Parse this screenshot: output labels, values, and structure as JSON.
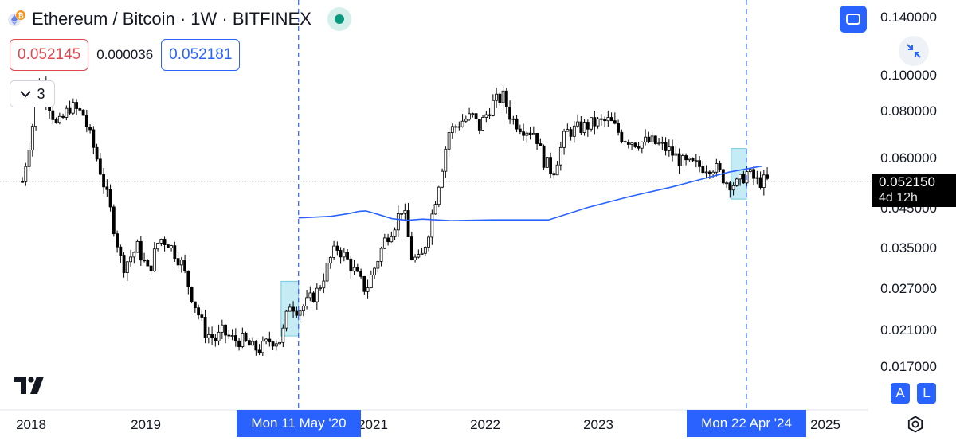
{
  "header": {
    "title": "Ethereum / Bitcoin · 1W · BITFINEX",
    "symbol_icon": "ethereum-icon",
    "status": "market-open",
    "status_color": "#089981"
  },
  "ohlc": {
    "sell_price": "0.052145",
    "spread": "0.000036",
    "buy_price": "0.052181"
  },
  "indicators": {
    "collapsed_count": "3"
  },
  "buttons": {
    "fullscreen_icon": "fullscreen-icon",
    "compress_icon": "compress-arrows-icon",
    "auto_scale": "A",
    "log_scale": "L",
    "settings_icon": "gear-icon"
  },
  "price_axis": {
    "labels": [
      "0.140000",
      "0.100000",
      "0.080000",
      "0.060000",
      "0.045000",
      "0.035000",
      "0.027000",
      "0.021000",
      "0.017000"
    ],
    "last_price": "0.052150",
    "countdown": "4d 12h"
  },
  "time_axis": {
    "labels": [
      "2018",
      "2019",
      "2021",
      "2022",
      "2023",
      "2025"
    ],
    "flags": [
      "Mon 11 May '20",
      "Mon 22 Apr '24"
    ]
  },
  "colors": {
    "candles": "#000000",
    "moving_average": "#2962ff",
    "highlight_fill": "#bfeaf4",
    "highlight_border": "#67c5dd",
    "accent": "#2962ff",
    "red": "#e0474f"
  },
  "chart_data": {
    "type": "candlestick",
    "title": "Ethereum / Bitcoin · 1W · BITFINEX",
    "scale": "log",
    "ylim": [
      0.0155,
      0.145
    ],
    "y_ticks": [
      0.14,
      0.1,
      0.08,
      0.06,
      0.045,
      0.035,
      0.027,
      0.021,
      0.017
    ],
    "x_ticks": [
      "2018",
      "2019",
      "2021",
      "2022",
      "2023",
      "2025"
    ],
    "last_price": 0.05215,
    "price_series": {
      "name": "ETH/BTC",
      "x": [
        "2017-12-04",
        "2018-01-08",
        "2018-01-29",
        "2018-03-26",
        "2018-05-07",
        "2018-06-18",
        "2018-08-06",
        "2018-09-10",
        "2018-10-22",
        "2018-12-10",
        "2019-01-14",
        "2019-02-18",
        "2019-03-18",
        "2019-04-29",
        "2019-06-03",
        "2019-07-15",
        "2019-08-19",
        "2019-09-09",
        "2019-10-14",
        "2019-11-11",
        "2019-12-16",
        "2020-01-13",
        "2020-02-10",
        "2020-03-16",
        "2020-04-13",
        "2020-05-11",
        "2020-06-08",
        "2020-07-13",
        "2020-08-24",
        "2020-09-14",
        "2020-10-19",
        "2020-11-09",
        "2020-12-14",
        "2021-01-11",
        "2021-02-15",
        "2021-03-15",
        "2021-04-12",
        "2021-05-10",
        "2021-06-07",
        "2021-07-05",
        "2021-08-16",
        "2021-09-06",
        "2021-10-18",
        "2021-11-22",
        "2021-12-13",
        "2022-01-24",
        "2022-02-28",
        "2022-03-28",
        "2022-05-02",
        "2022-06-13",
        "2022-07-04",
        "2022-08-08",
        "2022-09-19",
        "2022-11-07",
        "2022-12-19",
        "2023-02-06",
        "2023-03-20",
        "2023-05-01",
        "2023-06-26",
        "2023-08-14",
        "2023-10-02",
        "2023-11-27",
        "2024-01-08",
        "2024-02-19",
        "2024-03-25",
        "2024-04-22",
        "2024-05-27",
        "2024-07-01"
      ],
      "close": [
        0.052,
        0.075,
        0.098,
        0.072,
        0.082,
        0.078,
        0.058,
        0.045,
        0.031,
        0.035,
        0.03,
        0.037,
        0.036,
        0.032,
        0.026,
        0.021,
        0.02,
        0.021,
        0.02,
        0.02,
        0.019,
        0.019,
        0.02,
        0.02,
        0.025,
        0.024,
        0.025,
        0.027,
        0.033,
        0.035,
        0.032,
        0.03,
        0.027,
        0.031,
        0.037,
        0.04,
        0.045,
        0.033,
        0.032,
        0.039,
        0.057,
        0.07,
        0.075,
        0.077,
        0.072,
        0.083,
        0.087,
        0.076,
        0.072,
        0.07,
        0.06,
        0.055,
        0.07,
        0.072,
        0.074,
        0.075,
        0.068,
        0.066,
        0.066,
        0.063,
        0.058,
        0.057,
        0.057,
        0.052,
        0.051,
        0.055,
        0.052,
        0.05215
      ]
    },
    "moving_average": {
      "name": "",
      "x": [
        "2020-05-11",
        "2020-08-24",
        "2020-10-19",
        "2020-11-23",
        "2020-12-14",
        "2021-01-18",
        "2021-03-08",
        "2021-04-26",
        "2021-06-14",
        "2021-09-13",
        "2022-01-24",
        "2022-04-11",
        "2022-07-25",
        "2022-11-28",
        "2023-04-10",
        "2023-08-28",
        "2023-12-04",
        "2024-02-26",
        "2024-04-29",
        "2024-06-10"
      ],
      "y": [
        0.0418,
        0.0422,
        0.0429,
        0.0435,
        0.0436,
        0.0428,
        0.0416,
        0.0412,
        0.0415,
        0.0411,
        0.0413,
        0.0413,
        0.0413,
        0.0445,
        0.0475,
        0.0504,
        0.0529,
        0.0551,
        0.0563,
        0.0571
      ]
    },
    "highlights": [
      {
        "from": "2020-03-16",
        "to": "2020-05-11",
        "low": 0.0205,
        "high": 0.0285
      },
      {
        "from": "2024-03-04",
        "to": "2024-04-22",
        "low": 0.0468,
        "high": 0.0635
      }
    ],
    "vertical_markers": [
      "2020-05-11",
      "2024-04-22"
    ],
    "grid": false
  }
}
